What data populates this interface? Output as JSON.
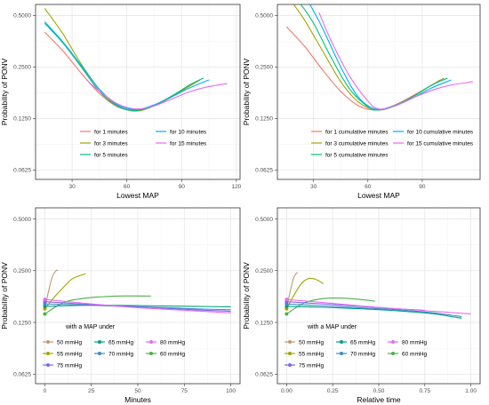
{
  "figure": {
    "colors": {
      "for 1 minutes": "#F8766D",
      "for 3 minutes": "#A3A500",
      "for 5 minutes": "#00BF7D",
      "for 10 minutes": "#00B0F6",
      "for 15 minutes": "#E76BF3",
      "for 1 cumulative minutes": "#F8766D",
      "for 3 cumulative minutes": "#A3A500",
      "for 5 cumulative minutes": "#00BF7D",
      "for 10 cumulative minutes": "#00B0F6",
      "for 15 cumulative minutes": "#E76BF3",
      "50 mmHg": "#C49A6C",
      "55 mmHg": "#A3A500",
      "60 mmHg": "#4DAF4A",
      "65 mmHg": "#00A087",
      "70 mmHg": "#3C8DBC",
      "75 mmHg": "#7B68EE",
      "80 mmHg": "#E76BF3"
    }
  },
  "chart_data": [
    {
      "type": "line",
      "xlabel": "Lowest MAP",
      "ylabel": "Probability of PONV",
      "ylog": true,
      "xlim": [
        10,
        122
      ],
      "ylim": [
        0.055,
        0.58
      ],
      "xticks": [
        30,
        60,
        90,
        120
      ],
      "yticks": [
        0.0625,
        0.125,
        0.25,
        0.5
      ],
      "ytick_labels": [
        "0.0625",
        "0.1250",
        "0.2500",
        "0.5000"
      ],
      "legend_title": "",
      "legend_placement": "bottom-center, 2 columns",
      "legend": [
        "for 1 minutes",
        "for 10 minutes",
        "for 3 minutes",
        "for 15 minutes",
        "for 5 minutes"
      ],
      "series": [
        {
          "name": "for 1 minutes",
          "x": [
            15,
            25,
            35,
            45,
            55,
            65,
            75,
            85,
            95,
            100
          ],
          "y": [
            0.4,
            0.31,
            0.23,
            0.175,
            0.146,
            0.14,
            0.15,
            0.17,
            0.195,
            0.21
          ]
        },
        {
          "name": "for 3 minutes",
          "x": [
            15,
            25,
            35,
            45,
            55,
            65,
            75,
            85,
            95,
            100
          ],
          "y": [
            0.55,
            0.39,
            0.26,
            0.185,
            0.148,
            0.138,
            0.148,
            0.168,
            0.195,
            0.21
          ]
        },
        {
          "name": "for 5 minutes",
          "x": [
            15,
            25,
            35,
            45,
            55,
            65,
            75,
            85,
            95,
            102
          ],
          "y": [
            0.45,
            0.345,
            0.25,
            0.18,
            0.147,
            0.139,
            0.149,
            0.17,
            0.198,
            0.215
          ]
        },
        {
          "name": "for 10 minutes",
          "x": [
            15,
            25,
            35,
            45,
            55,
            65,
            75,
            85,
            95,
            105
          ],
          "y": [
            0.46,
            0.35,
            0.255,
            0.185,
            0.15,
            0.141,
            0.15,
            0.168,
            0.19,
            0.21
          ]
        },
        {
          "name": "for 15 minutes",
          "x": [
            38,
            45,
            55,
            65,
            75,
            85,
            95,
            105,
            115
          ],
          "y": [
            0.21,
            0.18,
            0.152,
            0.142,
            0.148,
            0.163,
            0.18,
            0.192,
            0.2
          ]
        }
      ]
    },
    {
      "type": "line",
      "xlabel": "Lowest MAP",
      "ylabel": "Probability of PONV",
      "ylog": true,
      "xlim": [
        10,
        122
      ],
      "ylim": [
        0.055,
        0.58
      ],
      "xticks": [
        30,
        60,
        90
      ],
      "yticks": [
        0.0625,
        0.125,
        0.25,
        0.5
      ],
      "ytick_labels": [
        "0.0625",
        "0.1250",
        "0.2500",
        "0.5000"
      ],
      "legend_title": "",
      "legend_placement": "bottom-center, 2 columns",
      "legend": [
        "for 1 cumulative minutes",
        "for 10 cumulative minutes",
        "for 3 cumulative minutes",
        "for 15 cumulative minutes",
        "for 5 cumulative minutes"
      ],
      "series": [
        {
          "name": "for 1 cumulative minutes",
          "x": [
            15,
            25,
            35,
            45,
            55,
            65,
            75,
            85,
            95,
            100
          ],
          "y": [
            0.43,
            0.33,
            0.24,
            0.18,
            0.148,
            0.14,
            0.15,
            0.17,
            0.195,
            0.21
          ]
        },
        {
          "name": "for 3 cumulative minutes",
          "x": [
            19,
            25,
            35,
            45,
            55,
            65,
            75,
            85,
            95,
            102
          ],
          "y": [
            0.58,
            0.47,
            0.31,
            0.205,
            0.155,
            0.14,
            0.148,
            0.168,
            0.195,
            0.215
          ]
        },
        {
          "name": "for 5 cumulative minutes",
          "x": [
            23,
            30,
            40,
            50,
            60,
            65,
            75,
            85,
            95,
            104
          ],
          "y": [
            0.58,
            0.45,
            0.28,
            0.185,
            0.146,
            0.14,
            0.149,
            0.168,
            0.195,
            0.215
          ]
        },
        {
          "name": "for 10 cumulative minutes",
          "x": [
            28,
            35,
            45,
            55,
            65,
            75,
            85,
            95,
            106
          ],
          "y": [
            0.58,
            0.42,
            0.25,
            0.165,
            0.141,
            0.148,
            0.165,
            0.188,
            0.21
          ]
        },
        {
          "name": "for 15 cumulative minutes",
          "x": [
            33,
            40,
            50,
            60,
            66,
            75,
            85,
            95,
            105,
            118
          ],
          "y": [
            0.52,
            0.35,
            0.22,
            0.158,
            0.142,
            0.148,
            0.165,
            0.182,
            0.195,
            0.205
          ]
        }
      ]
    },
    {
      "type": "line",
      "xlabel": "Minutes",
      "ylabel": "Probability of PONV",
      "ylog": true,
      "xlim": [
        -5,
        105
      ],
      "ylim": [
        0.055,
        0.58
      ],
      "xticks": [
        0,
        25,
        50,
        75,
        100
      ],
      "yticks": [
        0.0625,
        0.125,
        0.25,
        0.5
      ],
      "ytick_labels": [
        "0.0625",
        "0.1250",
        "0.2500",
        "0.5000"
      ],
      "legend_title": "with a MAP under",
      "legend_placement": "bottom-left, 3 columns",
      "legend": [
        "50 mmHg",
        "65 mmHg",
        "80 mmHg",
        "55 mmHg",
        "70 mmHg",
        "60 mmHg",
        "75 mmHg"
      ],
      "series": [
        {
          "name": "50 mmHg",
          "x": [
            0,
            2,
            4,
            6,
            7
          ],
          "y": [
            0.15,
            0.19,
            0.23,
            0.25,
            0.25
          ]
        },
        {
          "name": "55 mmHg",
          "x": [
            0,
            5,
            10,
            15,
            22
          ],
          "y": [
            0.15,
            0.175,
            0.2,
            0.225,
            0.24
          ]
        },
        {
          "name": "60 mmHg",
          "x": [
            0,
            10,
            20,
            30,
            40,
            57
          ],
          "y": [
            0.14,
            0.163,
            0.172,
            0.176,
            0.178,
            0.178
          ]
        },
        {
          "name": "65 mmHg",
          "x": [
            0,
            20,
            40,
            60,
            80,
            100
          ],
          "y": [
            0.155,
            0.157,
            0.157,
            0.156,
            0.155,
            0.154
          ]
        },
        {
          "name": "70 mmHg",
          "x": [
            0,
            20,
            40,
            60,
            80,
            100
          ],
          "y": [
            0.16,
            0.158,
            0.155,
            0.153,
            0.15,
            0.148
          ]
        },
        {
          "name": "75 mmHg",
          "x": [
            0,
            20,
            40,
            60,
            80,
            100
          ],
          "y": [
            0.165,
            0.16,
            0.156,
            0.152,
            0.148,
            0.145
          ]
        },
        {
          "name": "80 mmHg",
          "x": [
            0,
            20,
            40,
            60,
            80,
            100
          ],
          "y": [
            0.17,
            0.162,
            0.155,
            0.15,
            0.146,
            0.142
          ]
        }
      ]
    },
    {
      "type": "line",
      "xlabel": "Relative time",
      "ylabel": "Probability of PONV",
      "ylog": true,
      "xlim": [
        -0.05,
        1.05
      ],
      "ylim": [
        0.055,
        0.58
      ],
      "xticks": [
        0,
        0.25,
        0.5,
        0.75,
        1
      ],
      "xtick_labels": [
        "0.00",
        "0.25",
        "0.50",
        "0.75",
        "1.00"
      ],
      "yticks": [
        0.0625,
        0.125,
        0.25,
        0.5
      ],
      "ytick_labels": [
        "0.0625",
        "0.1250",
        "0.2500",
        "0.5000"
      ],
      "legend_title": "with a MAP under",
      "legend_placement": "bottom-left, 3 columns",
      "legend": [
        "50 mmHg",
        "65 mmHg",
        "80 mmHg",
        "55 mmHg",
        "70 mmHg",
        "60 mmHg",
        "75 mmHg"
      ],
      "series": [
        {
          "name": "50 mmHg",
          "x": [
            0,
            0.02,
            0.04,
            0.06
          ],
          "y": [
            0.15,
            0.19,
            0.23,
            0.245
          ]
        },
        {
          "name": "55 mmHg",
          "x": [
            0,
            0.04,
            0.08,
            0.12,
            0.16,
            0.2
          ],
          "y": [
            0.15,
            0.18,
            0.21,
            0.225,
            0.222,
            0.21
          ]
        },
        {
          "name": "60 mmHg",
          "x": [
            0,
            0.1,
            0.2,
            0.3,
            0.4,
            0.48
          ],
          "y": [
            0.14,
            0.163,
            0.172,
            0.173,
            0.17,
            0.166
          ]
        },
        {
          "name": "65 mmHg",
          "x": [
            0,
            0.2,
            0.4,
            0.6,
            0.8,
            0.95
          ],
          "y": [
            0.155,
            0.153,
            0.15,
            0.146,
            0.14,
            0.132
          ]
        },
        {
          "name": "70 mmHg",
          "x": [
            0,
            0.2,
            0.4,
            0.6,
            0.8,
            0.95
          ],
          "y": [
            0.16,
            0.156,
            0.152,
            0.148,
            0.142,
            0.135
          ]
        },
        {
          "name": "75 mmHg",
          "x": [
            0,
            0.2,
            0.4,
            0.6,
            0.75
          ],
          "y": [
            0.165,
            0.16,
            0.155,
            0.15,
            0.147
          ]
        },
        {
          "name": "80 mmHg",
          "x": [
            0,
            0.2,
            0.4,
            0.6,
            0.8,
            1.0
          ],
          "y": [
            0.17,
            0.163,
            0.156,
            0.15,
            0.145,
            0.14
          ]
        }
      ]
    }
  ]
}
